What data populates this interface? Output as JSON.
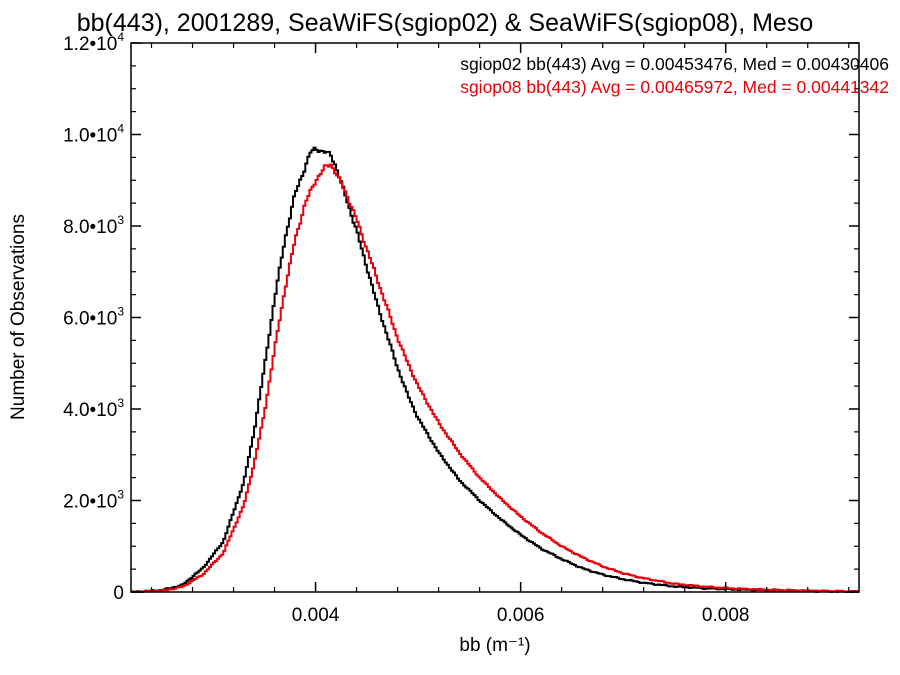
{
  "chart_data": {
    "type": "line",
    "style": "step-histogram",
    "title": "bb(443), 2001289, SeaWiFS(sgiop02) & SeaWiFS(sgiop08), Meso",
    "xlabel": "bb (m⁻¹)",
    "ylabel": "Number of Observations",
    "xlim": [
      0.0022,
      0.0093
    ],
    "ylim": [
      0,
      12000
    ],
    "grid": false,
    "legend_position": "top-right",
    "x_ticks": [
      {
        "value": 0.004,
        "label": "0.004"
      },
      {
        "value": 0.006,
        "label": "0.006"
      },
      {
        "value": 0.008,
        "label": "0.008"
      }
    ],
    "y_ticks": [
      {
        "value": 0,
        "label": "0",
        "mant": "",
        "exp": ""
      },
      {
        "value": 2000,
        "label": "",
        "mant": "2.0•10",
        "exp": "3"
      },
      {
        "value": 4000,
        "label": "",
        "mant": "4.0•10",
        "exp": "3"
      },
      {
        "value": 6000,
        "label": "",
        "mant": "6.0•10",
        "exp": "3"
      },
      {
        "value": 8000,
        "label": "",
        "mant": "8.0•10",
        "exp": "3"
      },
      {
        "value": 10000,
        "label": "",
        "mant": "1.0•10",
        "exp": "4"
      },
      {
        "value": 12000,
        "label": "",
        "mant": "1.2•10",
        "exp": "4"
      }
    ],
    "series": [
      {
        "name": "sgiop02",
        "legend": "sgiop02 bb(443) Avg = 0.00453476, Med = 0.00430406",
        "color": "#000000",
        "x": [
          0.0022,
          0.0025,
          0.0027,
          0.0029,
          0.0031,
          0.0033,
          0.0034,
          0.0035,
          0.0036,
          0.0037,
          0.0038,
          0.0039,
          0.00395,
          0.004,
          0.00405,
          0.0041,
          0.00415,
          0.0042,
          0.0043,
          0.0044,
          0.0045,
          0.0046,
          0.0047,
          0.0048,
          0.0049,
          0.005,
          0.0052,
          0.0054,
          0.0056,
          0.0058,
          0.006,
          0.0062,
          0.0064,
          0.0066,
          0.0068,
          0.007,
          0.0072,
          0.0075,
          0.0078,
          0.0081,
          0.0084,
          0.0087,
          0.009,
          0.0093
        ],
        "y": [
          0,
          40,
          150,
          520,
          1100,
          2400,
          3500,
          4900,
          6400,
          7700,
          8700,
          9300,
          9600,
          9700,
          9650,
          9600,
          9550,
          9300,
          8600,
          7900,
          7100,
          6300,
          5600,
          4900,
          4300,
          3800,
          3050,
          2450,
          2000,
          1600,
          1250,
          950,
          720,
          520,
          380,
          280,
          200,
          120,
          80,
          55,
          40,
          25,
          15,
          5
        ]
      },
      {
        "name": "sgiop08",
        "legend": "sgiop08 bb(443) Avg = 0.00465972, Med = 0.00441342",
        "color": "#e8000b",
        "x": [
          0.0022,
          0.0025,
          0.0027,
          0.0029,
          0.0031,
          0.0033,
          0.0034,
          0.0035,
          0.0036,
          0.0037,
          0.0038,
          0.0039,
          0.004,
          0.0041,
          0.00415,
          0.0042,
          0.0043,
          0.0044,
          0.0045,
          0.0046,
          0.0047,
          0.0048,
          0.0049,
          0.005,
          0.0052,
          0.0054,
          0.0056,
          0.0058,
          0.006,
          0.0062,
          0.0064,
          0.0066,
          0.0068,
          0.007,
          0.0072,
          0.0075,
          0.0078,
          0.0081,
          0.0084,
          0.0087,
          0.009,
          0.0093
        ],
        "y": [
          0,
          25,
          110,
          380,
          850,
          1900,
          2800,
          3900,
          5300,
          6600,
          7700,
          8500,
          9000,
          9300,
          9350,
          9150,
          8700,
          8150,
          7500,
          6850,
          6200,
          5550,
          5000,
          4500,
          3700,
          3050,
          2500,
          2050,
          1650,
          1300,
          1000,
          760,
          560,
          410,
          300,
          180,
          115,
          75,
          50,
          35,
          20,
          8
        ]
      }
    ]
  }
}
